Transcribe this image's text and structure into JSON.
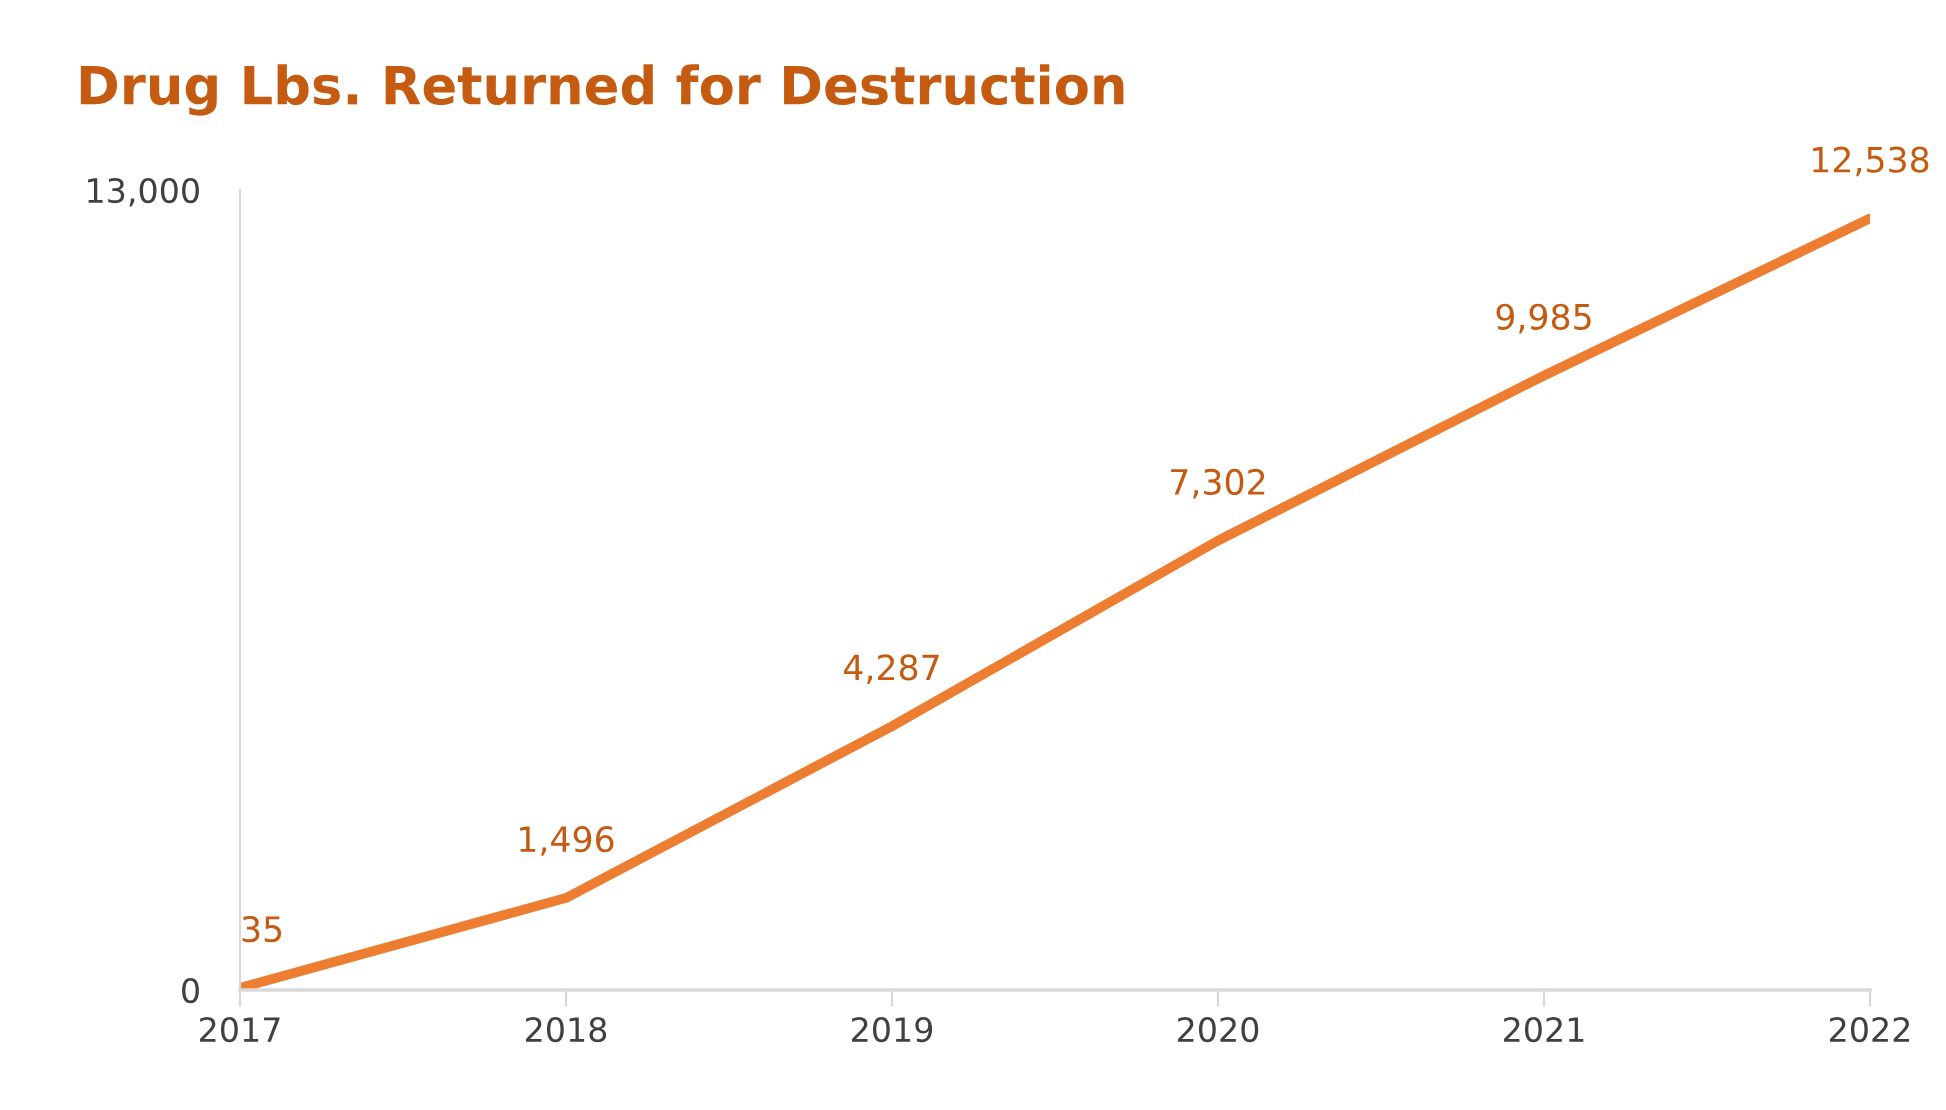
{
  "chart_data": {
    "type": "line",
    "title": "Drug Lbs. Returned for Destruction",
    "categories": [
      "2017",
      "2018",
      "2019",
      "2020",
      "2021",
      "2022"
    ],
    "series": [
      {
        "color": "#ed7d31",
        "values": [
          35,
          1496,
          4287,
          7302,
          9985,
          12538
        ],
        "value_labels": [
          "35",
          "1,496",
          "4,287",
          "7,302",
          "9,985",
          "12,538"
        ]
      }
    ],
    "ylim": [
      0,
      13000
    ],
    "yticks": [
      0,
      {
        "value": 13000,
        "label": "13,000"
      }
    ],
    "grid": false,
    "legend": false,
    "marker": "none",
    "line_style": "solid"
  }
}
